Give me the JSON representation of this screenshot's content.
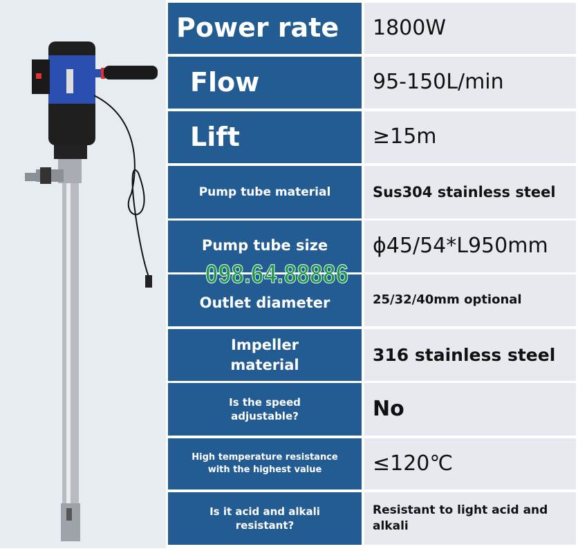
{
  "specs": [
    {
      "label": "Power rate",
      "value": "1800W"
    },
    {
      "label": "Flow",
      "value": "95-150L/min"
    },
    {
      "label": "Lift",
      "value": "≥15m"
    },
    {
      "label": "Pump tube material",
      "value": "Sus304 stainless steel"
    },
    {
      "label": "Pump tube size",
      "value": "ϕ45/54*L950mm"
    },
    {
      "label": "Outlet diameter",
      "value": "25/32/40mm optional"
    },
    {
      "label": "Impeller material",
      "value": "316 stainless steel"
    },
    {
      "label": "Is the speed adjustable?",
      "value": "No"
    },
    {
      "label": "High temperature resistance with the highest value",
      "value": "≤120℃"
    },
    {
      "label": "Is it acid and alkali resistant?",
      "value": "Resistant to light acid and alkali"
    }
  ],
  "watermark": "098.64.88886",
  "colors": {
    "label_bg": "#235b93",
    "value_bg": "#e6eaef",
    "watermark": "#1b9a4a",
    "pump_body": "#2a4fb0"
  }
}
